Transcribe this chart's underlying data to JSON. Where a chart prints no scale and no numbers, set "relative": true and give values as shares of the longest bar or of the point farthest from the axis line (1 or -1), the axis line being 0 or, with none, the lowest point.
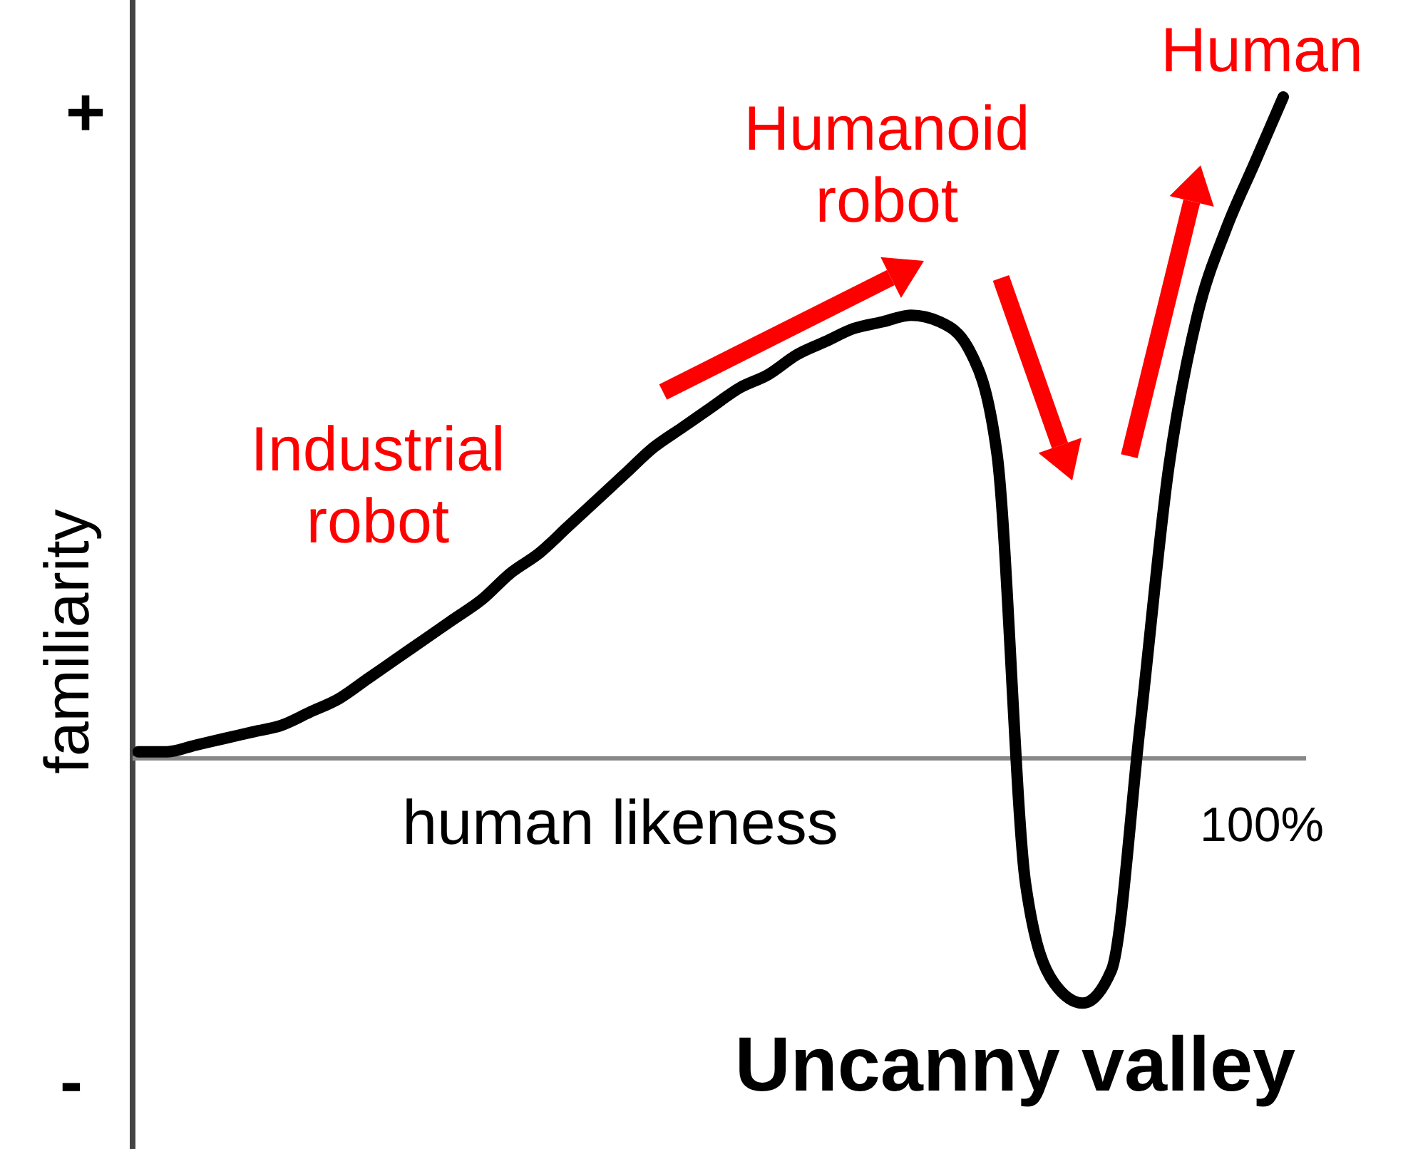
{
  "chart_data": {
    "type": "line",
    "title": "Uncanny valley",
    "xlabel": "human likeness",
    "ylabel": "familiarity",
    "relative": true,
    "color": "#000000",
    "categories": [
      null,
      null,
      null,
      null,
      null,
      null,
      null,
      null,
      null,
      null,
      null,
      null,
      null,
      null,
      null,
      null,
      null,
      null,
      null,
      null,
      null,
      null,
      null,
      null,
      null,
      null,
      null,
      null,
      null,
      null,
      null,
      null,
      null,
      null,
      null,
      null,
      null,
      null,
      null,
      null,
      null
    ],
    "values": [
      0.01,
      0.01,
      0.02,
      0.03,
      0.04,
      0.05,
      0.07,
      0.09,
      0.12,
      0.15,
      0.18,
      0.21,
      0.24,
      0.28,
      0.31,
      0.35,
      0.39,
      0.43,
      0.47,
      0.5,
      0.53,
      0.56,
      0.58,
      0.61,
      0.63,
      0.65,
      0.66,
      0.67,
      0.66,
      0.62,
      0.46,
      -0.19,
      -0.34,
      -0.37,
      -0.32,
      0.05,
      0.44,
      0.67,
      0.8,
      0.9,
      1.0
    ],
    "annotations": [
      "+",
      "-",
      "100%",
      "Industrial robot",
      "Humanoid robot",
      "Human"
    ]
  }
}
